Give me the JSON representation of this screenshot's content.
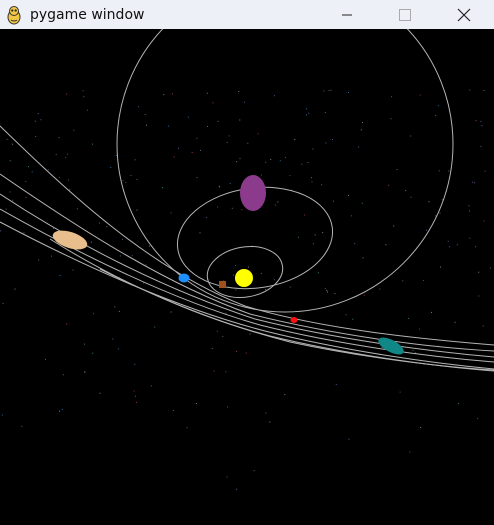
{
  "window": {
    "title": "pygame window",
    "background_color": "#000000",
    "titlebar_color": "#eef0f8",
    "controls": {
      "minimize_icon": "minimize-icon",
      "maximize_icon": "maximize-icon",
      "close_icon": "close-icon"
    }
  },
  "scene": {
    "orbit_color": "#b4b4b4",
    "sun": {
      "name": "sun",
      "color": "#ffff00"
    },
    "bodies": [
      {
        "name": "blue-planet",
        "color": "#1e8fff"
      },
      {
        "name": "brown-planet",
        "color": "#a0521e"
      },
      {
        "name": "red-planet",
        "color": "#ff1010"
      },
      {
        "name": "purple-planet",
        "color": "#8c3a8c"
      },
      {
        "name": "tan-planet",
        "color": "#e8be8c"
      },
      {
        "name": "teal-planet",
        "color": "#108888"
      }
    ],
    "stars_color": "#5a5a8a"
  }
}
